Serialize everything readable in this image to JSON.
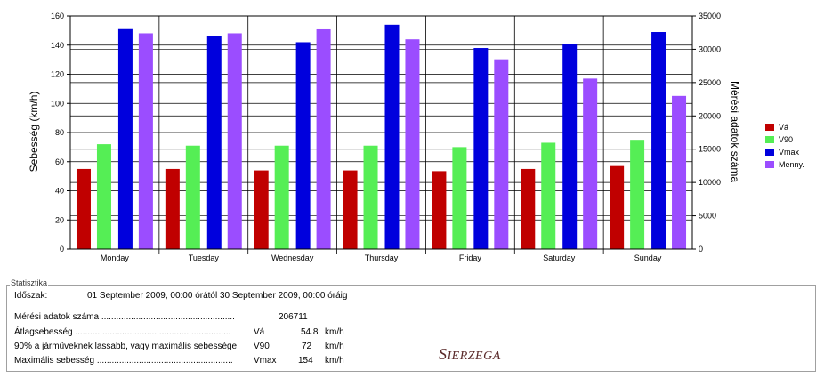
{
  "chart_data": {
    "type": "bar",
    "categories": [
      "Monday",
      "Tuesday",
      "Wednesday",
      "Thursday",
      "Friday",
      "Saturday",
      "Sunday"
    ],
    "ylabel": "Sebesség (km/h)",
    "y2label": "Mérési adatok száma",
    "ylim": [
      0,
      160
    ],
    "y2lim": [
      0,
      35000
    ],
    "yticks": [
      "0",
      "20",
      "40",
      "60",
      "80",
      "100",
      "120",
      "140",
      "160"
    ],
    "y2ticks": [
      "0",
      "5000",
      "10000",
      "15000",
      "20000",
      "25000",
      "30000",
      "35000"
    ],
    "grid": true,
    "legend_position": "right",
    "series": [
      {
        "name": "Vá",
        "color": "#c00000",
        "axis": "left",
        "values": [
          55,
          55,
          54,
          54,
          53.5,
          55,
          57
        ]
      },
      {
        "name": "V90",
        "color": "#55ee55",
        "axis": "left",
        "values": [
          72,
          71,
          71,
          71,
          70,
          73,
          75
        ]
      },
      {
        "name": "Vmax",
        "color": "#0000dd",
        "axis": "left",
        "values": [
          151,
          146,
          142,
          154,
          138,
          141,
          149
        ]
      },
      {
        "name": "Menny.",
        "color": "#9b4dff",
        "axis": "right",
        "values": [
          32400,
          32400,
          33000,
          31500,
          28500,
          25600,
          23000
        ]
      }
    ]
  },
  "stats": {
    "title": "Statisztika",
    "period_label": "Időszak:",
    "period_value": "01 September 2009, 00:00 órától 30 September 2009, 00:00 óráig",
    "rows": [
      {
        "label": "Mérési adatok száma ......................................................",
        "sym": "",
        "value": "206711",
        "unit": ""
      },
      {
        "label": "Átlagsebesség ...............................................................",
        "sym": "Vá",
        "value": "54.8",
        "unit": "km/h"
      },
      {
        "label": "90% a járműveknek lassabb, vagy maximális sebessége",
        "sym": "V90",
        "value": "72",
        "unit": "km/h"
      },
      {
        "label": "Maximális sebesség .......................................................",
        "sym": "Vmax",
        "value": "154",
        "unit": "km/h"
      }
    ]
  },
  "logo": {
    "first": "S",
    "rest": "IERZEGA"
  }
}
